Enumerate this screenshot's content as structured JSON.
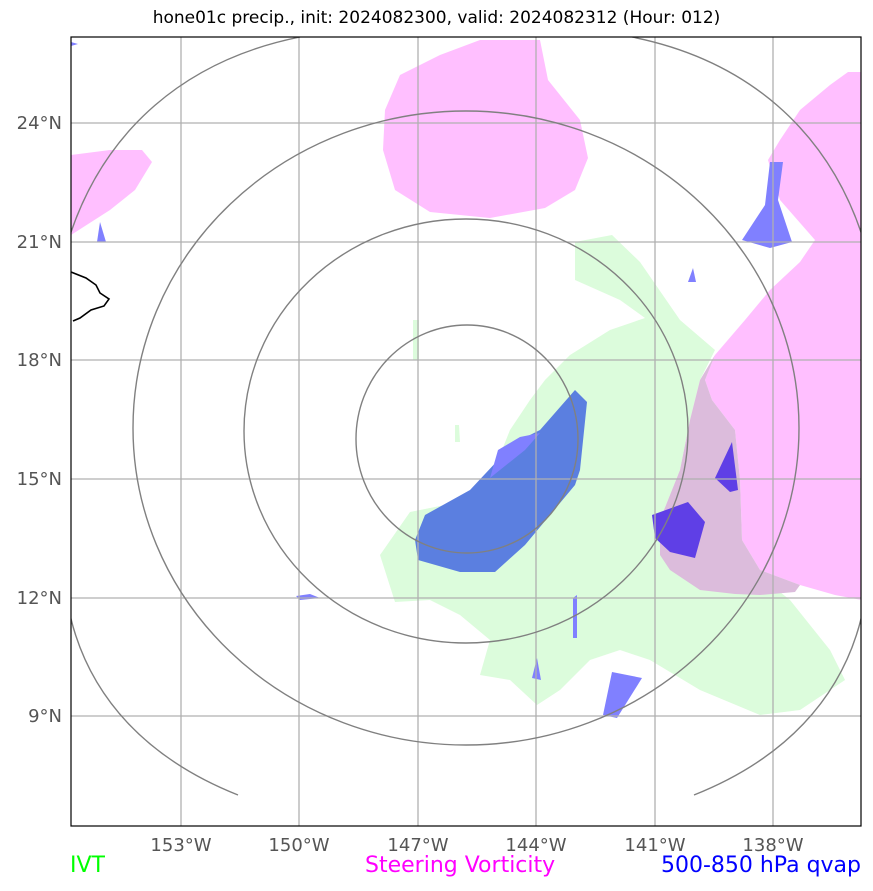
{
  "title": "hone01c precip., init: 2024082300, valid: 2024082312 (Hour: 012)",
  "legend": [
    {
      "label": "IVT",
      "color": "#00ff00"
    },
    {
      "label": "Steering Vorticity",
      "color": "#ff00ff"
    },
    {
      "label": "500-850 hPa qvap",
      "color": "#0000ff"
    }
  ],
  "axes": {
    "longitude_ticks": [
      "153°W",
      "150°W",
      "147°W",
      "144°W",
      "141°W",
      "138°W"
    ],
    "latitude_ticks": [
      "24°N",
      "21°N",
      "18°N",
      "15°N",
      "12°N",
      "9°N"
    ]
  },
  "colors": {
    "ivt_fill": "#dcfcdc",
    "vorticity_fill": "#ffbfff",
    "overlap_fill": "#dcbcdc",
    "qvap_light": "#8080ff",
    "qvap_mid": "#5b7fe0",
    "qvap_dark": "#5f3fe6",
    "range_rings": "#808080",
    "gridlines": "#b0b0b0",
    "coastline": "#000000"
  }
}
